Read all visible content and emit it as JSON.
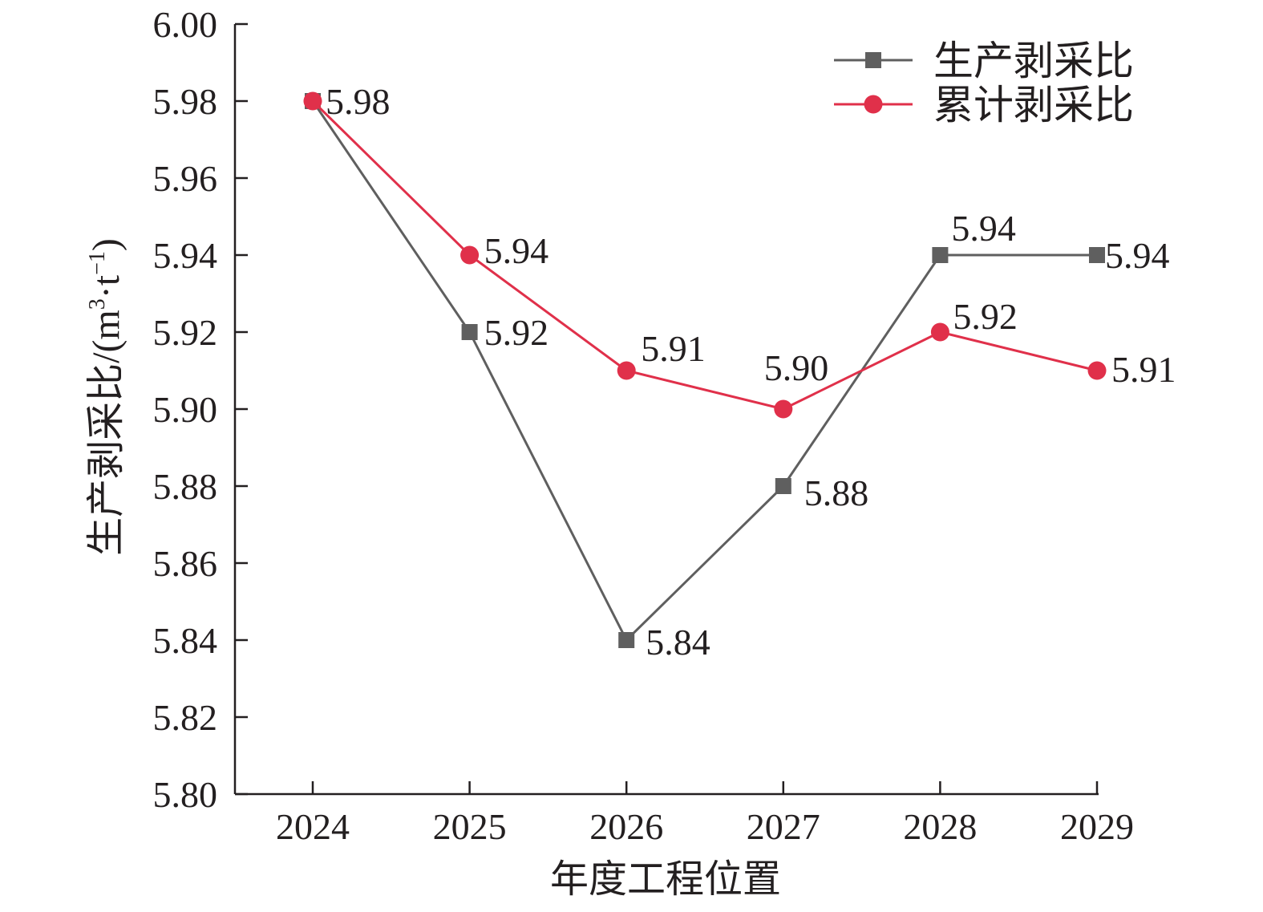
{
  "chart_data": {
    "type": "line",
    "categories": [
      "2024",
      "2025",
      "2026",
      "2027",
      "2028",
      "2029"
    ],
    "series": [
      {
        "name": "生产剥采比",
        "values": [
          5.98,
          5.92,
          5.84,
          5.88,
          5.94,
          5.94
        ],
        "labels": [
          "5.98",
          "5.92",
          "5.84",
          "5.88",
          "5.94",
          "5.94"
        ],
        "color": "#5f5f5f",
        "marker": "square"
      },
      {
        "name": "累计剥采比",
        "values": [
          5.98,
          5.94,
          5.91,
          5.9,
          5.92,
          5.91
        ],
        "labels": [
          "5.98",
          "5.94",
          "5.91",
          "5.90",
          "5.92",
          "5.91"
        ],
        "color": "#e0304a",
        "marker": "circle"
      }
    ],
    "xlabel": "年度工程位置",
    "ylabel": "生产剥采比/(m³·t⁻¹)",
    "ylabel_parts": {
      "main": "生产剥采比/(m",
      "sup1": "3",
      "mid": "·t",
      "sup2": "−1",
      "end": ")"
    },
    "ylim": [
      5.8,
      6.0
    ],
    "yticks": [
      "5.80",
      "5.82",
      "5.84",
      "5.86",
      "5.88",
      "5.90",
      "5.92",
      "5.94",
      "5.96",
      "5.98",
      "6.00"
    ],
    "legend_position": "top-right",
    "grid": false
  }
}
